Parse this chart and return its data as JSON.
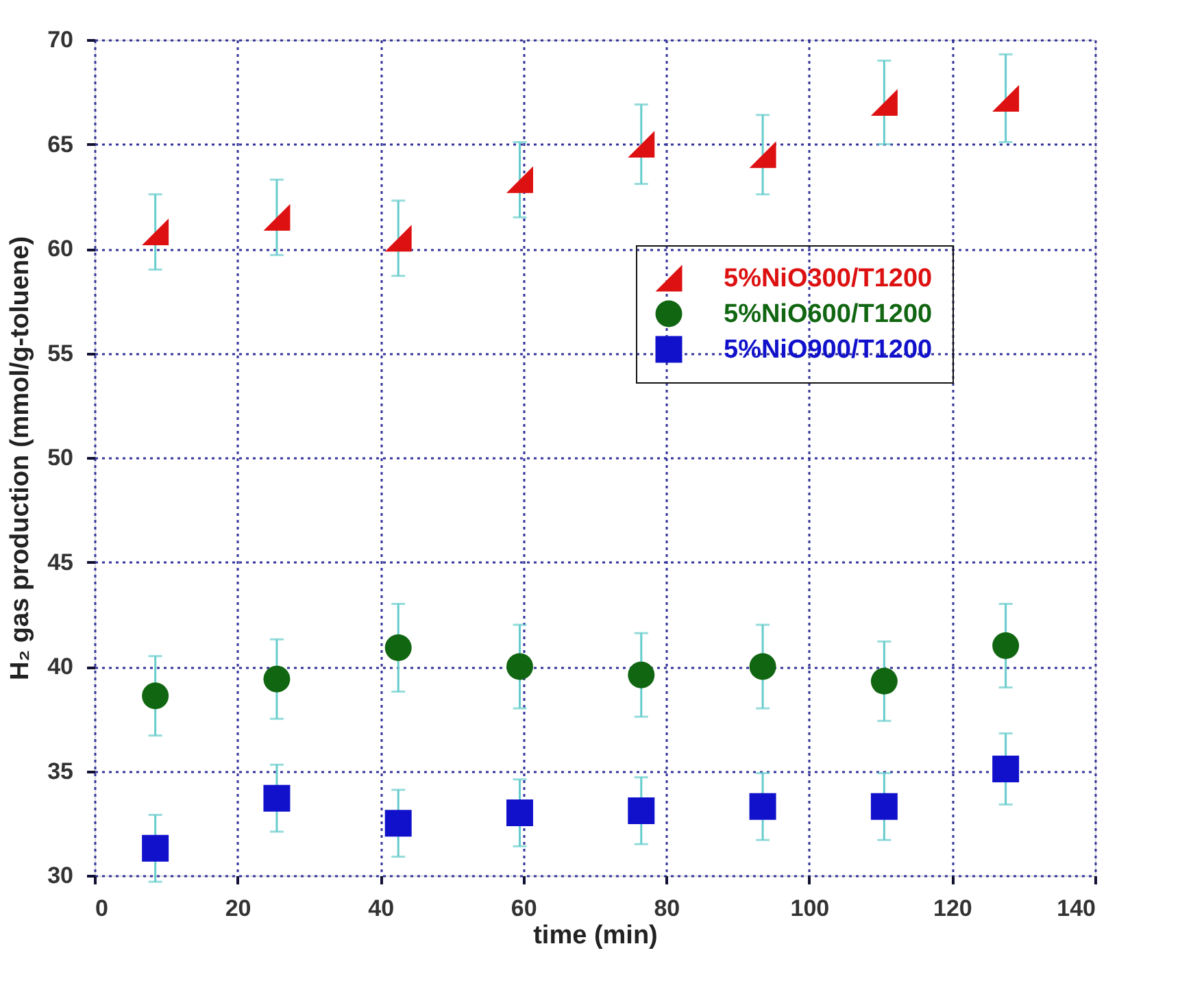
{
  "chart_data": {
    "type": "scatter",
    "xlabel": "time (min)",
    "ylabel": "H₂ gas production (mmol/g-toluene)",
    "x": [
      8.5,
      25.5,
      42.5,
      59.5,
      76.5,
      93.5,
      110.5,
      127.5
    ],
    "series": [
      {
        "name": "5%NiO300/T1200",
        "color": "#dd1111",
        "marker": "triangle",
        "values": [
          60.8,
          61.5,
          60.5,
          63.3,
          65.0,
          64.5,
          67.0,
          67.2
        ],
        "errors": [
          1.8,
          1.8,
          1.8,
          1.8,
          1.9,
          1.9,
          2.0,
          2.1
        ]
      },
      {
        "name": "5%NiO600/T1200",
        "color": "#116611",
        "marker": "circle",
        "values": [
          38.6,
          39.4,
          40.9,
          40.0,
          39.6,
          40.0,
          39.3,
          41.0
        ],
        "errors": [
          1.9,
          1.9,
          2.1,
          2.0,
          2.0,
          2.0,
          1.9,
          2.0
        ]
      },
      {
        "name": "5%NiO900/T1200",
        "color": "#1111cc",
        "marker": "square",
        "values": [
          31.3,
          33.7,
          32.5,
          33.0,
          33.1,
          33.3,
          33.3,
          35.1
        ],
        "errors": [
          1.6,
          1.6,
          1.6,
          1.6,
          1.6,
          1.6,
          1.6,
          1.7
        ]
      }
    ],
    "xlim": [
      0,
      140
    ],
    "xticks": [
      0,
      20,
      40,
      60,
      80,
      100,
      120,
      140
    ],
    "ylim": [
      30,
      70
    ],
    "yticks": [
      30,
      35,
      40,
      45,
      50,
      55,
      60,
      65,
      70
    ],
    "grid": true,
    "legend": "right"
  }
}
